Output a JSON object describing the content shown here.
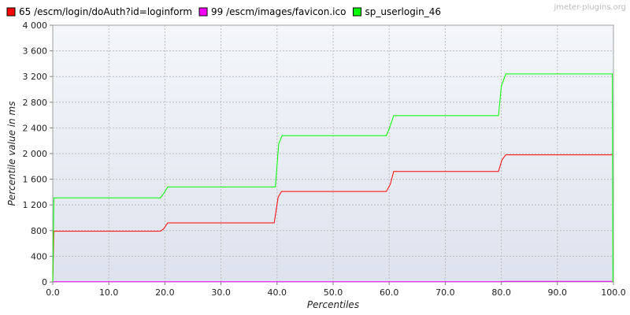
{
  "chart_data": {
    "type": "line",
    "title": "",
    "xlabel": "Percentiles",
    "ylabel": "Percentile value in ms",
    "xlim": [
      0,
      100
    ],
    "ylim": [
      0,
      4000
    ],
    "x_ticks": [
      "0.0",
      "10.0",
      "20.0",
      "30.0",
      "40.0",
      "50.0",
      "60.0",
      "70.0",
      "80.0",
      "90.0",
      "100.0"
    ],
    "y_ticks": [
      "0",
      "400",
      "800",
      "1 200",
      "1 600",
      "2 000",
      "2 400",
      "2 800",
      "3 200",
      "3 600",
      "4 000"
    ],
    "grid": true,
    "legend_position": "top-left",
    "watermark": "jmeter-plugins.org",
    "series": [
      {
        "name": "65 /escm/login/doAuth?id=loginform",
        "color": "#ff0000",
        "x": [
          0,
          0.2,
          19.2,
          19.8,
          20.5,
          39.5,
          40.2,
          40.8,
          59.5,
          60.2,
          60.8,
          79.5,
          80.1,
          80.8,
          99.8
        ],
        "y": [
          0,
          790,
          790,
          830,
          920,
          920,
          1320,
          1410,
          1410,
          1520,
          1720,
          1720,
          1900,
          1980,
          1980
        ]
      },
      {
        "name": "99 /escm/images/favicon.ico",
        "color": "#ff00ff",
        "x": [
          0,
          80,
          80.5,
          99.8
        ],
        "y": [
          3,
          3,
          10,
          10
        ]
      },
      {
        "name": "sp_userlogin_46",
        "color": "#00ff00",
        "x": [
          0,
          0.2,
          19.2,
          19.8,
          20.5,
          39.7,
          40.3,
          40.9,
          59.5,
          60.1,
          60.8,
          79.5,
          80.0,
          80.8,
          99.8,
          99.9
        ],
        "y": [
          0,
          1310,
          1310,
          1380,
          1480,
          1480,
          2150,
          2280,
          2280,
          2410,
          2590,
          2590,
          3050,
          3240,
          3240,
          0
        ]
      }
    ]
  }
}
